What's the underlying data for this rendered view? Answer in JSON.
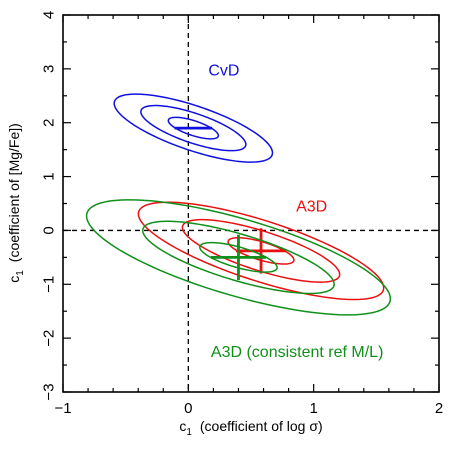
{
  "chart_data": {
    "type": "scatter",
    "xlabel_main": "c",
    "xlabel_sub": "1",
    "xlabel_rest": "(coefficient of log σ)",
    "ylabel_main": "c",
    "ylabel_sub": "1",
    "ylabel_rest": "(coefficient of [Mg/Fe])",
    "xlim": [
      -1,
      2
    ],
    "ylim": [
      -3,
      4
    ],
    "xticks": [
      -1,
      0,
      1,
      2
    ],
    "yticks": [
      -3,
      -2,
      -1,
      0,
      1,
      2,
      3,
      4
    ],
    "reference_lines": {
      "x": 0,
      "y": 0
    },
    "grid": false,
    "series": [
      {
        "name": "CvD",
        "color": "#1010e0",
        "center": [
          0.04,
          1.9
        ],
        "cross_halfwidth": [
          0.15,
          0.0
        ],
        "cross_halfheight": [
          0.0,
          0.28
        ],
        "ellipses": [
          {
            "a": 0.26,
            "b": 0.11,
            "angle": -45
          },
          {
            "a": 0.55,
            "b": 0.22,
            "angle": -45
          },
          {
            "a": 0.83,
            "b": 0.33,
            "angle": -45
          }
        ]
      },
      {
        "name": "A3D",
        "color": "#e81010",
        "center": [
          0.58,
          -0.38
        ],
        "cross_halfwidth": [
          0.2
        ],
        "cross_halfheight": [
          0.42
        ],
        "ellipses": [
          {
            "a": 0.33,
            "b": 0.14,
            "angle": -42
          },
          {
            "a": 0.8,
            "b": 0.3,
            "angle": -42
          },
          {
            "a": 1.25,
            "b": 0.46,
            "angle": -42
          }
        ]
      },
      {
        "name": "A3D (consistent ref M/L)",
        "color": "#10901a",
        "center": [
          0.4,
          -0.5
        ],
        "cross_halfwidth": [
          0.22
        ],
        "cross_halfheight": [
          0.42
        ],
        "ellipses": [
          {
            "a": 0.38,
            "b": 0.16,
            "angle": -40
          },
          {
            "a": 0.95,
            "b": 0.36,
            "angle": -40
          },
          {
            "a": 1.5,
            "b": 0.6,
            "angle": -40
          }
        ]
      }
    ],
    "annotations": [
      {
        "text": "CvD",
        "x": 0.16,
        "y": 2.88,
        "color": "#1010e0"
      },
      {
        "text": "A3D",
        "x": 0.86,
        "y": 0.35,
        "color": "#e81010"
      },
      {
        "text": "A3D (consistent ref M/L)",
        "x": 0.18,
        "y": -2.35,
        "color": "#10901a"
      }
    ]
  }
}
